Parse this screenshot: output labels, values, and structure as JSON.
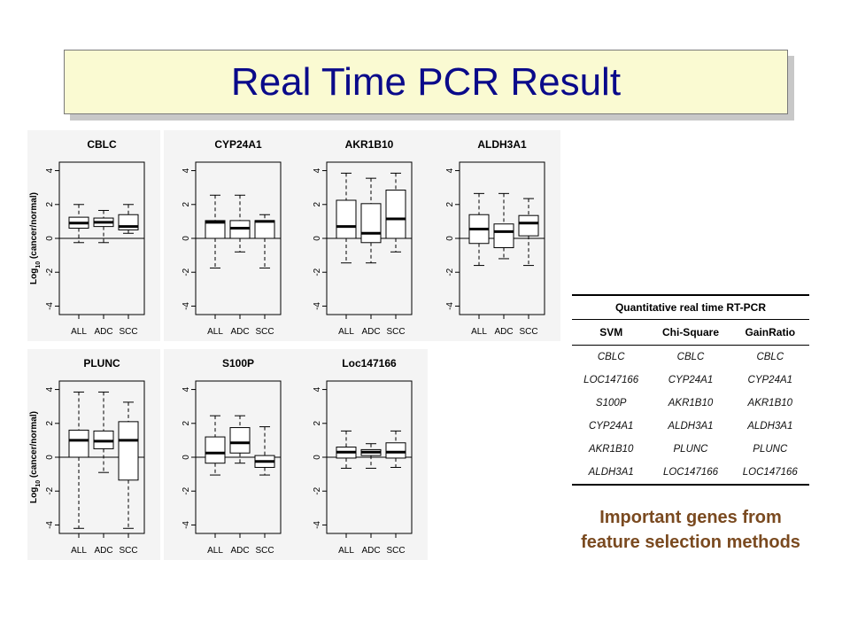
{
  "slide": {
    "title": "Real Time PCR Result"
  },
  "colors": {
    "title_text": "#0a0a8a",
    "title_bg": "#fafad2",
    "caption_text": "#7a4a20",
    "plot_bg": "#f4f4f4"
  },
  "chart_data": {
    "type": "boxplot",
    "ylabel": "Log10 (cancer/normal)",
    "ylim": [
      -4.5,
      4.5
    ],
    "yticks": [
      -4,
      -2,
      0,
      2,
      4
    ],
    "categories": [
      "ALL",
      "ADC",
      "SCC"
    ],
    "panels": [
      {
        "title": "CBLC",
        "show_ylabel": true,
        "boxes": [
          {
            "lw": -0.25,
            "q1": 0.6,
            "median": 0.9,
            "q3": 1.25,
            "uw": 2.0
          },
          {
            "lw": -0.25,
            "q1": 0.7,
            "median": 0.95,
            "q3": 1.2,
            "uw": 1.65
          },
          {
            "lw": 0.3,
            "q1": 0.5,
            "median": 0.7,
            "q3": 1.4,
            "uw": 2.0
          }
        ]
      },
      {
        "title": "CYP24A1",
        "show_ylabel": false,
        "boxes": [
          {
            "lw": -1.75,
            "q1": 0.0,
            "median": 0.95,
            "q3": 1.05,
            "uw": 2.55
          },
          {
            "lw": -0.8,
            "q1": 0.0,
            "median": 0.6,
            "q3": 1.05,
            "uw": 2.55
          },
          {
            "lw": -1.75,
            "q1": 0.0,
            "median": 1.0,
            "q3": 1.05,
            "uw": 1.4
          }
        ]
      },
      {
        "title": "AKR1B10",
        "show_ylabel": false,
        "boxes": [
          {
            "lw": -1.45,
            "q1": 0.0,
            "median": 0.7,
            "q3": 2.25,
            "uw": 3.85
          },
          {
            "lw": -1.45,
            "q1": -0.25,
            "median": 0.3,
            "q3": 2.05,
            "uw": 3.55
          },
          {
            "lw": -0.8,
            "q1": 0.0,
            "median": 1.15,
            "q3": 2.85,
            "uw": 3.85
          }
        ]
      },
      {
        "title": "ALDH3A1",
        "show_ylabel": false,
        "boxes": [
          {
            "lw": -1.6,
            "q1": -0.3,
            "median": 0.55,
            "q3": 1.4,
            "uw": 2.65
          },
          {
            "lw": -1.2,
            "q1": -0.55,
            "median": 0.4,
            "q3": 0.85,
            "uw": 2.65
          },
          {
            "lw": -1.6,
            "q1": 0.15,
            "median": 0.9,
            "q3": 1.35,
            "uw": 2.35
          }
        ]
      },
      {
        "title": "PLUNC",
        "show_ylabel": true,
        "boxes": [
          {
            "lw": -4.2,
            "q1": 0.0,
            "median": 1.0,
            "q3": 1.6,
            "uw": 3.85
          },
          {
            "lw": -0.9,
            "q1": 0.5,
            "median": 0.95,
            "q3": 1.55,
            "uw": 3.85
          },
          {
            "lw": -4.2,
            "q1": -1.35,
            "median": 1.0,
            "q3": 2.1,
            "uw": 3.25
          }
        ]
      },
      {
        "title": "S100P",
        "show_ylabel": false,
        "boxes": [
          {
            "lw": -1.05,
            "q1": -0.35,
            "median": 0.25,
            "q3": 1.2,
            "uw": 2.45
          },
          {
            "lw": -0.35,
            "q1": 0.25,
            "median": 0.85,
            "q3": 1.75,
            "uw": 2.45
          },
          {
            "lw": -1.05,
            "q1": -0.6,
            "median": -0.25,
            "q3": 0.1,
            "uw": 1.8
          }
        ]
      },
      {
        "title": "Loc147166",
        "show_ylabel": false,
        "boxes": [
          {
            "lw": -0.65,
            "q1": -0.05,
            "median": 0.3,
            "q3": 0.6,
            "uw": 1.55
          },
          {
            "lw": -0.65,
            "q1": 0.1,
            "median": 0.3,
            "q3": 0.45,
            "uw": 0.8
          },
          {
            "lw": -0.6,
            "q1": -0.05,
            "median": 0.3,
            "q3": 0.85,
            "uw": 1.55
          }
        ]
      }
    ]
  },
  "table": {
    "caption": "Quantitative real time RT-PCR",
    "headers": [
      "SVM",
      "Chi-Square",
      "GainRatio"
    ],
    "rows": [
      [
        "CBLC",
        "CBLC",
        "CBLC"
      ],
      [
        "LOC147166",
        "CYP24A1",
        "CYP24A1"
      ],
      [
        "S100P",
        "AKR1B10",
        "AKR1B10"
      ],
      [
        "CYP24A1",
        "ALDH3A1",
        "ALDH3A1"
      ],
      [
        "AKR1B10",
        "PLUNC",
        "PLUNC"
      ],
      [
        "ALDH3A1",
        "LOC147166",
        "LOC147166"
      ]
    ]
  },
  "caption": {
    "line1": "Important genes from",
    "line2": "feature selection methods"
  }
}
